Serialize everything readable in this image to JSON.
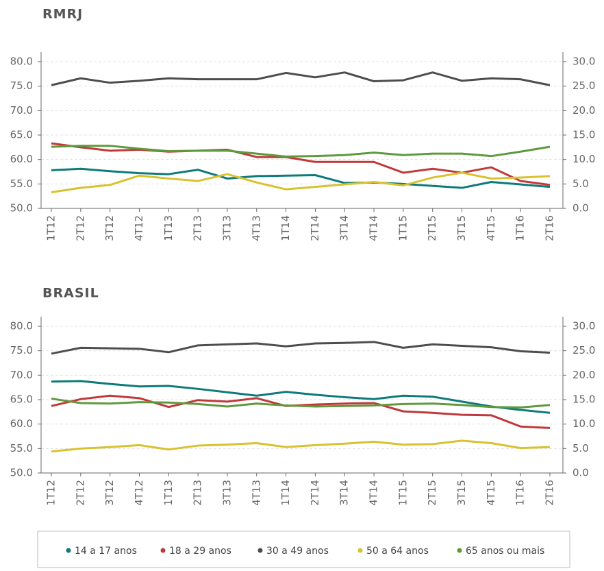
{
  "chart_data": [
    {
      "type": "line",
      "title": "RMRJ",
      "categories": [
        "1T12",
        "2T12",
        "3T12",
        "4T12",
        "1T13",
        "2T13",
        "3T13",
        "4T13",
        "1T14",
        "2T14",
        "3T14",
        "4T14",
        "1T15",
        "2T15",
        "3T15",
        "4T15",
        "1T16",
        "2T16"
      ],
      "ylim": [
        50,
        80
      ],
      "yticks": [
        {
          "value": 50,
          "label": "50.0"
        },
        {
          "value": 55,
          "label": "55.0"
        },
        {
          "value": 60,
          "label": "60.0"
        },
        {
          "value": 65,
          "label": "65.0"
        },
        {
          "value": 70,
          "label": "70.0"
        },
        {
          "value": 75,
          "label": "75.0"
        },
        {
          "value": 80,
          "label": "80.0"
        }
      ],
      "y2lim": [
        0,
        30
      ],
      "y2ticks": [
        {
          "value": 0,
          "label": "0.0"
        },
        {
          "value": 5,
          "label": "5.0"
        },
        {
          "value": 10,
          "label": "10.0"
        },
        {
          "value": 15,
          "label": "15.0"
        },
        {
          "value": 20,
          "label": "20.0"
        },
        {
          "value": 25,
          "label": "25.0"
        },
        {
          "value": 30,
          "label": "30.0"
        }
      ],
      "grid": true,
      "series": [
        {
          "name": "14 a 17 anos",
          "color": "#0e7a7a",
          "axis": "y2",
          "values": [
            7.8,
            8.1,
            7.6,
            7.2,
            7.0,
            7.9,
            6.1,
            6.6,
            6.7,
            6.8,
            5.2,
            5.3,
            5.0,
            4.6,
            4.2,
            5.4,
            4.9,
            4.4
          ]
        },
        {
          "name": "18 a 29 anos",
          "color": "#c0393a",
          "values": [
            63.3,
            62.5,
            61.8,
            62.0,
            61.6,
            61.8,
            62.0,
            60.5,
            60.5,
            59.5,
            59.5,
            59.5,
            57.3,
            58.1,
            57.3,
            58.4,
            55.6,
            54.8
          ]
        },
        {
          "name": "30 a 49 anos",
          "color": "#4d4d4d",
          "values": [
            75.2,
            76.6,
            75.7,
            76.1,
            76.6,
            76.4,
            76.4,
            76.4,
            77.7,
            76.8,
            77.8,
            76.0,
            76.2,
            77.8,
            76.1,
            76.6,
            76.4,
            75.2
          ]
        },
        {
          "name": "50 a 64 anos",
          "color": "#d8c22f",
          "values": [
            53.3,
            54.2,
            54.8,
            56.7,
            56.1,
            55.6,
            57.0,
            55.3,
            53.9,
            54.4,
            54.9,
            55.4,
            54.7,
            56.3,
            57.3,
            56.1,
            56.3,
            56.6
          ]
        },
        {
          "name": "65 anos ou mais",
          "color": "#5e9a3c",
          "axis": "y2",
          "values": [
            12.6,
            12.8,
            12.8,
            12.2,
            11.7,
            11.8,
            11.8,
            11.2,
            10.6,
            10.7,
            10.9,
            11.4,
            10.9,
            11.2,
            11.2,
            10.7,
            11.6,
            12.6
          ]
        }
      ]
    },
    {
      "type": "line",
      "title": "BRASIL",
      "categories": [
        "1T12",
        "2T12",
        "3T12",
        "4T12",
        "1T13",
        "2T13",
        "3T13",
        "4T13",
        "1T14",
        "2T14",
        "3T14",
        "4T14",
        "1T15",
        "2T15",
        "3T15",
        "4T15",
        "1T16",
        "2T16"
      ],
      "ylim": [
        50,
        80
      ],
      "yticks": [
        {
          "value": 50,
          "label": "50.0"
        },
        {
          "value": 55,
          "label": "55.0"
        },
        {
          "value": 60,
          "label": "60.0"
        },
        {
          "value": 65,
          "label": "65.0"
        },
        {
          "value": 70,
          "label": "70.0"
        },
        {
          "value": 75,
          "label": "75.0"
        },
        {
          "value": 80,
          "label": "80.0"
        }
      ],
      "y2lim": [
        0,
        30
      ],
      "y2ticks": [
        {
          "value": 0,
          "label": "0.0"
        },
        {
          "value": 5,
          "label": "5.0"
        },
        {
          "value": 10,
          "label": "10.0"
        },
        {
          "value": 15,
          "label": "15.0"
        },
        {
          "value": 20,
          "label": "20.0"
        },
        {
          "value": 25,
          "label": "25.0"
        },
        {
          "value": 30,
          "label": "30.0"
        }
      ],
      "grid": true,
      "series": [
        {
          "name": "14 a 17 anos",
          "color": "#0e7a7a",
          "axis": "y2",
          "values": [
            18.7,
            18.8,
            18.2,
            17.7,
            17.8,
            17.2,
            16.5,
            15.8,
            16.6,
            16.0,
            15.5,
            15.1,
            15.8,
            15.6,
            14.6,
            13.6,
            12.9,
            12.3
          ]
        },
        {
          "name": "18 a 29 anos",
          "color": "#c0393a",
          "values": [
            63.7,
            65.1,
            65.8,
            65.3,
            63.5,
            64.9,
            64.6,
            65.3,
            63.7,
            64.0,
            64.2,
            64.3,
            62.6,
            62.3,
            61.9,
            61.8,
            59.5,
            59.2
          ]
        },
        {
          "name": "30 a 49 anos",
          "color": "#4d4d4d",
          "values": [
            74.4,
            75.6,
            75.5,
            75.4,
            74.7,
            76.1,
            76.3,
            76.5,
            75.9,
            76.5,
            76.6,
            76.8,
            75.6,
            76.3,
            76.0,
            75.7,
            74.9,
            74.6
          ]
        },
        {
          "name": "50 a 64 anos",
          "color": "#d8c22f",
          "values": [
            54.4,
            55.0,
            55.3,
            55.7,
            54.8,
            55.6,
            55.8,
            56.1,
            55.3,
            55.7,
            56.0,
            56.4,
            55.8,
            55.9,
            56.6,
            56.1,
            55.1,
            55.3
          ]
        },
        {
          "name": "65 anos ou mais",
          "color": "#5e9a3c",
          "axis": "y2",
          "values": [
            15.2,
            14.3,
            14.2,
            14.5,
            14.4,
            14.1,
            13.6,
            14.2,
            13.8,
            13.6,
            13.7,
            13.8,
            14.1,
            14.2,
            13.9,
            13.5,
            13.4,
            13.9
          ]
        }
      ]
    }
  ]
}
